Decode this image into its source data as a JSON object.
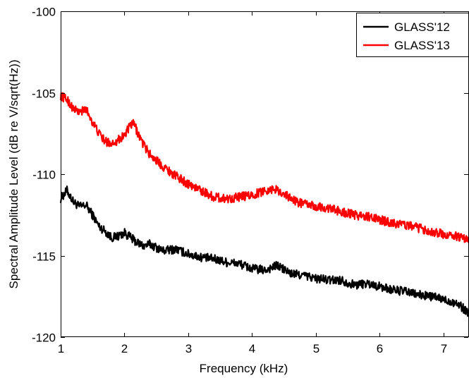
{
  "chart_data": {
    "type": "line",
    "title": "",
    "xlabel": "Frequency (kHz)",
    "ylabel": "Spectral Amplitude Level (dB re V/sqrt(Hz))",
    "xlim": [
      1,
      7.4
    ],
    "ylim": [
      -120,
      -100
    ],
    "x_ticks": [
      1,
      2,
      3,
      4,
      5,
      6,
      7
    ],
    "y_ticks": [
      -120,
      -115,
      -110,
      -105,
      -100
    ],
    "grid": false,
    "legend_position": "top-right",
    "series": [
      {
        "name": "GLASS'12",
        "color": "#000000",
        "x": [
          1.0,
          1.1,
          1.2,
          1.3,
          1.4,
          1.5,
          1.6,
          1.7,
          1.8,
          1.9,
          2.0,
          2.1,
          2.2,
          2.3,
          2.4,
          2.5,
          2.6,
          2.8,
          3.0,
          3.2,
          3.4,
          3.6,
          3.8,
          4.0,
          4.2,
          4.4,
          4.6,
          4.8,
          5.0,
          5.2,
          5.4,
          5.6,
          5.8,
          6.0,
          6.2,
          6.4,
          6.6,
          6.8,
          7.0,
          7.2,
          7.4
        ],
        "y": [
          -111.5,
          -111.0,
          -111.7,
          -112.0,
          -111.9,
          -112.5,
          -113.2,
          -113.5,
          -113.9,
          -113.8,
          -113.6,
          -113.9,
          -114.2,
          -114.4,
          -114.3,
          -114.5,
          -114.7,
          -114.6,
          -114.9,
          -115.1,
          -115.2,
          -115.4,
          -115.5,
          -115.8,
          -115.9,
          -115.6,
          -116.1,
          -116.2,
          -116.4,
          -116.5,
          -116.5,
          -116.8,
          -116.7,
          -116.9,
          -117.1,
          -117.2,
          -117.4,
          -117.5,
          -117.7,
          -117.9,
          -118.5
        ]
      },
      {
        "name": "GLASS'13",
        "color": "#ff0000",
        "x": [
          1.0,
          1.1,
          1.2,
          1.3,
          1.4,
          1.5,
          1.6,
          1.7,
          1.8,
          1.9,
          2.0,
          2.1,
          2.15,
          2.2,
          2.3,
          2.4,
          2.6,
          2.8,
          3.0,
          3.2,
          3.4,
          3.6,
          3.8,
          4.0,
          4.2,
          4.35,
          4.5,
          4.7,
          5.0,
          5.2,
          5.4,
          5.6,
          5.8,
          6.0,
          6.2,
          6.4,
          6.6,
          6.8,
          7.0,
          7.2,
          7.4
        ],
        "y": [
          -105.2,
          -105.4,
          -106.0,
          -106.2,
          -106.0,
          -106.8,
          -107.5,
          -108.0,
          -108.1,
          -107.9,
          -107.6,
          -107.0,
          -106.9,
          -107.4,
          -108.2,
          -108.8,
          -109.5,
          -110.1,
          -110.6,
          -111.0,
          -111.4,
          -111.5,
          -111.4,
          -111.3,
          -111.0,
          -110.9,
          -111.2,
          -111.7,
          -112.0,
          -112.1,
          -112.3,
          -112.5,
          -112.6,
          -112.8,
          -113.0,
          -113.1,
          -113.3,
          -113.5,
          -113.7,
          -113.8,
          -114.1
        ]
      }
    ]
  }
}
